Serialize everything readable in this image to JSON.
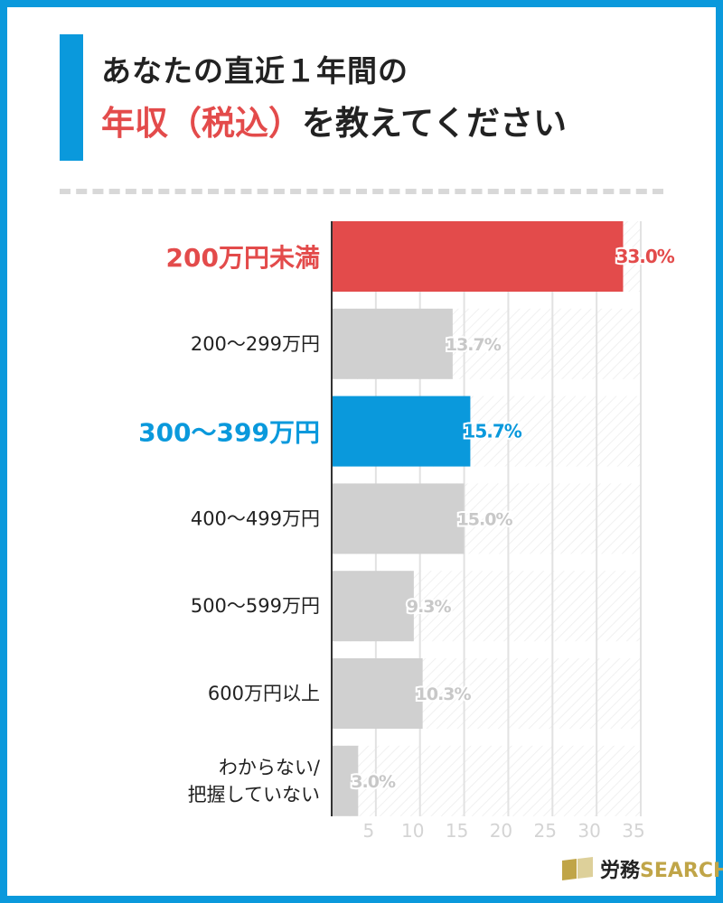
{
  "title": {
    "line1": "あなたの直近１年間の",
    "line2_highlight": "年収（税込）",
    "line2_rest": "を教えてください"
  },
  "colors": {
    "frame": "#0a99dc",
    "highlight_red": "#e34b4b",
    "highlight_blue": "#0a99dc",
    "default_bar": "#d0d0d0",
    "grid": "#e2e2e2"
  },
  "chart_data": {
    "type": "bar",
    "orientation": "horizontal",
    "categories": [
      "200万円未満",
      "200〜299万円",
      "300〜399万円",
      "400〜499万円",
      "500〜599万円",
      "600万円以上",
      "わからない/\n把握していない"
    ],
    "values": [
      33.0,
      13.7,
      15.7,
      15.0,
      9.3,
      10.3,
      3.0
    ],
    "value_labels": [
      "33.0%",
      "13.7%",
      "15.7%",
      "15.0%",
      "9.3%",
      "10.3%",
      "3.0%"
    ],
    "highlight": [
      "red",
      "none",
      "blue",
      "none",
      "none",
      "none",
      "none"
    ],
    "xlim": [
      0,
      35
    ],
    "xticks": [
      5,
      10,
      15,
      20,
      25,
      30,
      35
    ],
    "xtick_labels": [
      "5",
      "10",
      "15",
      "20",
      "25",
      "30",
      "35"
    ],
    "grid": true,
    "unit": "%"
  },
  "logo": {
    "jp": "労務",
    "en": "SEARCH"
  }
}
